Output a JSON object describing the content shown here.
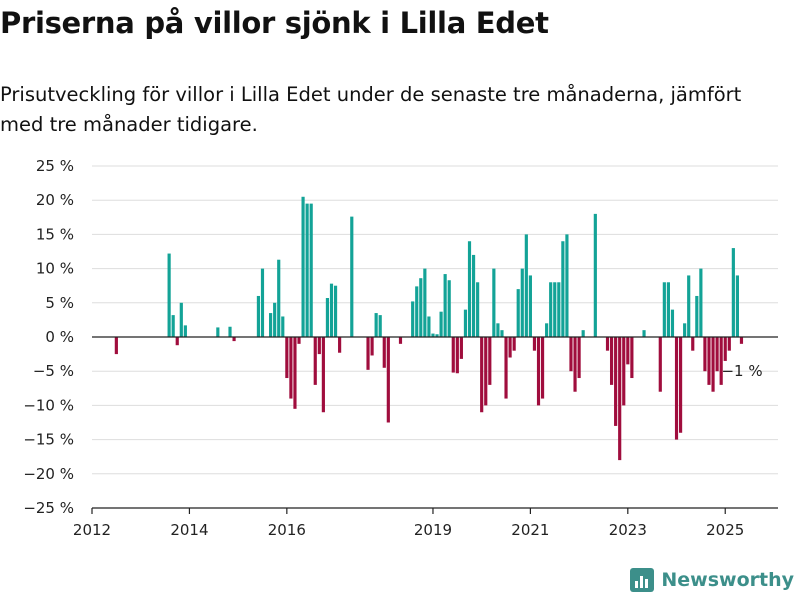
{
  "title": "Priserna på villor sjönk i Lilla Edet",
  "subtitle": "Prisutveckling för villor i Lilla Edet under de senaste tre månaderna, jämfört med tre månader tidigare.",
  "brand": {
    "name": "Newsworthy",
    "icon": "bar-chart-logo-icon"
  },
  "colors": {
    "positive": "#13a397",
    "negative": "#a00d3d",
    "grid": "#dddddd",
    "axis": "#222222",
    "brand": "#3c8f8a"
  },
  "chart_data": {
    "type": "bar",
    "title": "Priserna på villor sjönk i Lilla Edet",
    "ylim": [
      -25,
      25
    ],
    "y_ticks": [
      -25,
      -20,
      -15,
      -10,
      -5,
      0,
      5,
      10,
      15,
      20,
      25
    ],
    "y_tick_labels": [
      "−25 %",
      "−20 %",
      "−15 %",
      "−10 %",
      "−5 %",
      "0 %",
      "5 %",
      "10 %",
      "15 %",
      "20 %",
      "25 %"
    ],
    "x_range": [
      "2012-01",
      "2026-02"
    ],
    "x_ticks": [
      "2012-01",
      "2014-01",
      "2016-01",
      "2019-01",
      "2021-01",
      "2023-01",
      "2025-01"
    ],
    "x_tick_labels": [
      "2012",
      "2014",
      "2016",
      "2019",
      "2021",
      "2023",
      "2025"
    ],
    "grid": true,
    "annotation": {
      "date": "2025-05",
      "value": -1,
      "label": "−1 %"
    },
    "series": [
      {
        "values": [
          [
            "2012-07",
            -2.5
          ],
          [
            "2013-08",
            12.2
          ],
          [
            "2013-09",
            3.2
          ],
          [
            "2013-10",
            -1.2
          ],
          [
            "2013-11",
            5.0
          ],
          [
            "2013-12",
            1.7
          ],
          [
            "2014-08",
            1.4
          ],
          [
            "2014-11",
            1.5
          ],
          [
            "2014-12",
            -0.6
          ],
          [
            "2015-06",
            6.0
          ],
          [
            "2015-07",
            10.0
          ],
          [
            "2015-09",
            3.5
          ],
          [
            "2015-10",
            5.0
          ],
          [
            "2015-11",
            11.3
          ],
          [
            "2015-12",
            3.0
          ],
          [
            "2016-01",
            -6.0
          ],
          [
            "2016-02",
            -9.0
          ],
          [
            "2016-03",
            -10.5
          ],
          [
            "2016-04",
            -1.0
          ],
          [
            "2016-05",
            20.5
          ],
          [
            "2016-06",
            19.5
          ],
          [
            "2016-07",
            19.5
          ],
          [
            "2016-08",
            -7.0
          ],
          [
            "2016-09",
            -2.5
          ],
          [
            "2016-10",
            -11.0
          ],
          [
            "2016-11",
            5.7
          ],
          [
            "2016-12",
            7.8
          ],
          [
            "2017-01",
            7.5
          ],
          [
            "2017-02",
            -2.3
          ],
          [
            "2017-05",
            17.6
          ],
          [
            "2017-09",
            -4.8
          ],
          [
            "2017-10",
            -2.7
          ],
          [
            "2017-11",
            3.5
          ],
          [
            "2017-12",
            3.2
          ],
          [
            "2018-01",
            -4.5
          ],
          [
            "2018-02",
            -12.5
          ],
          [
            "2018-05",
            -1.0
          ],
          [
            "2018-08",
            5.2
          ],
          [
            "2018-09",
            7.4
          ],
          [
            "2018-10",
            8.6
          ],
          [
            "2018-11",
            10.0
          ],
          [
            "2018-12",
            3.0
          ],
          [
            "2019-01",
            0.5
          ],
          [
            "2019-02",
            0.4
          ],
          [
            "2019-03",
            3.7
          ],
          [
            "2019-04",
            9.2
          ],
          [
            "2019-05",
            8.3
          ],
          [
            "2019-06",
            -5.2
          ],
          [
            "2019-07",
            -5.3
          ],
          [
            "2019-08",
            -3.2
          ],
          [
            "2019-09",
            4.0
          ],
          [
            "2019-10",
            14.0
          ],
          [
            "2019-11",
            12.0
          ],
          [
            "2019-12",
            8.0
          ],
          [
            "2020-01",
            -11.0
          ],
          [
            "2020-02",
            -10.0
          ],
          [
            "2020-03",
            -7.0
          ],
          [
            "2020-04",
            10.0
          ],
          [
            "2020-05",
            2.0
          ],
          [
            "2020-06",
            1.0
          ],
          [
            "2020-07",
            -9.0
          ],
          [
            "2020-08",
            -3.0
          ],
          [
            "2020-09",
            -2.0
          ],
          [
            "2020-10",
            7.0
          ],
          [
            "2020-11",
            10.0
          ],
          [
            "2020-12",
            15.0
          ],
          [
            "2021-01",
            9.0
          ],
          [
            "2021-02",
            -2.0
          ],
          [
            "2021-03",
            -10.0
          ],
          [
            "2021-04",
            -9.0
          ],
          [
            "2021-05",
            2.0
          ],
          [
            "2021-06",
            8.0
          ],
          [
            "2021-07",
            8.0
          ],
          [
            "2021-08",
            8.0
          ],
          [
            "2021-09",
            14.0
          ],
          [
            "2021-10",
            15.0
          ],
          [
            "2021-11",
            -5.0
          ],
          [
            "2021-12",
            -8.0
          ],
          [
            "2022-01",
            -6.0
          ],
          [
            "2022-02",
            1.0
          ],
          [
            "2022-05",
            18.0
          ],
          [
            "2022-08",
            -2.0
          ],
          [
            "2022-09",
            -7.0
          ],
          [
            "2022-10",
            -13.0
          ],
          [
            "2022-11",
            -18.0
          ],
          [
            "2022-12",
            -10.0
          ],
          [
            "2023-01",
            -4.0
          ],
          [
            "2023-02",
            -6.0
          ],
          [
            "2023-05",
            1.0
          ],
          [
            "2023-09",
            -8.0
          ],
          [
            "2023-10",
            8.0
          ],
          [
            "2023-11",
            8.0
          ],
          [
            "2023-12",
            4.0
          ],
          [
            "2024-01",
            -15.0
          ],
          [
            "2024-02",
            -14.0
          ],
          [
            "2024-03",
            2.0
          ],
          [
            "2024-04",
            9.0
          ],
          [
            "2024-05",
            -2.0
          ],
          [
            "2024-06",
            6.0
          ],
          [
            "2024-07",
            10.0
          ],
          [
            "2024-08",
            -5.0
          ],
          [
            "2024-09",
            -7.0
          ],
          [
            "2024-10",
            -8.0
          ],
          [
            "2024-11",
            -5.0
          ],
          [
            "2024-12",
            -7.0
          ],
          [
            "2025-01",
            -3.5
          ],
          [
            "2025-02",
            -2.0
          ],
          [
            "2025-03",
            13.0
          ],
          [
            "2025-04",
            9.0
          ],
          [
            "2025-05",
            -1.0
          ]
        ]
      }
    ]
  }
}
